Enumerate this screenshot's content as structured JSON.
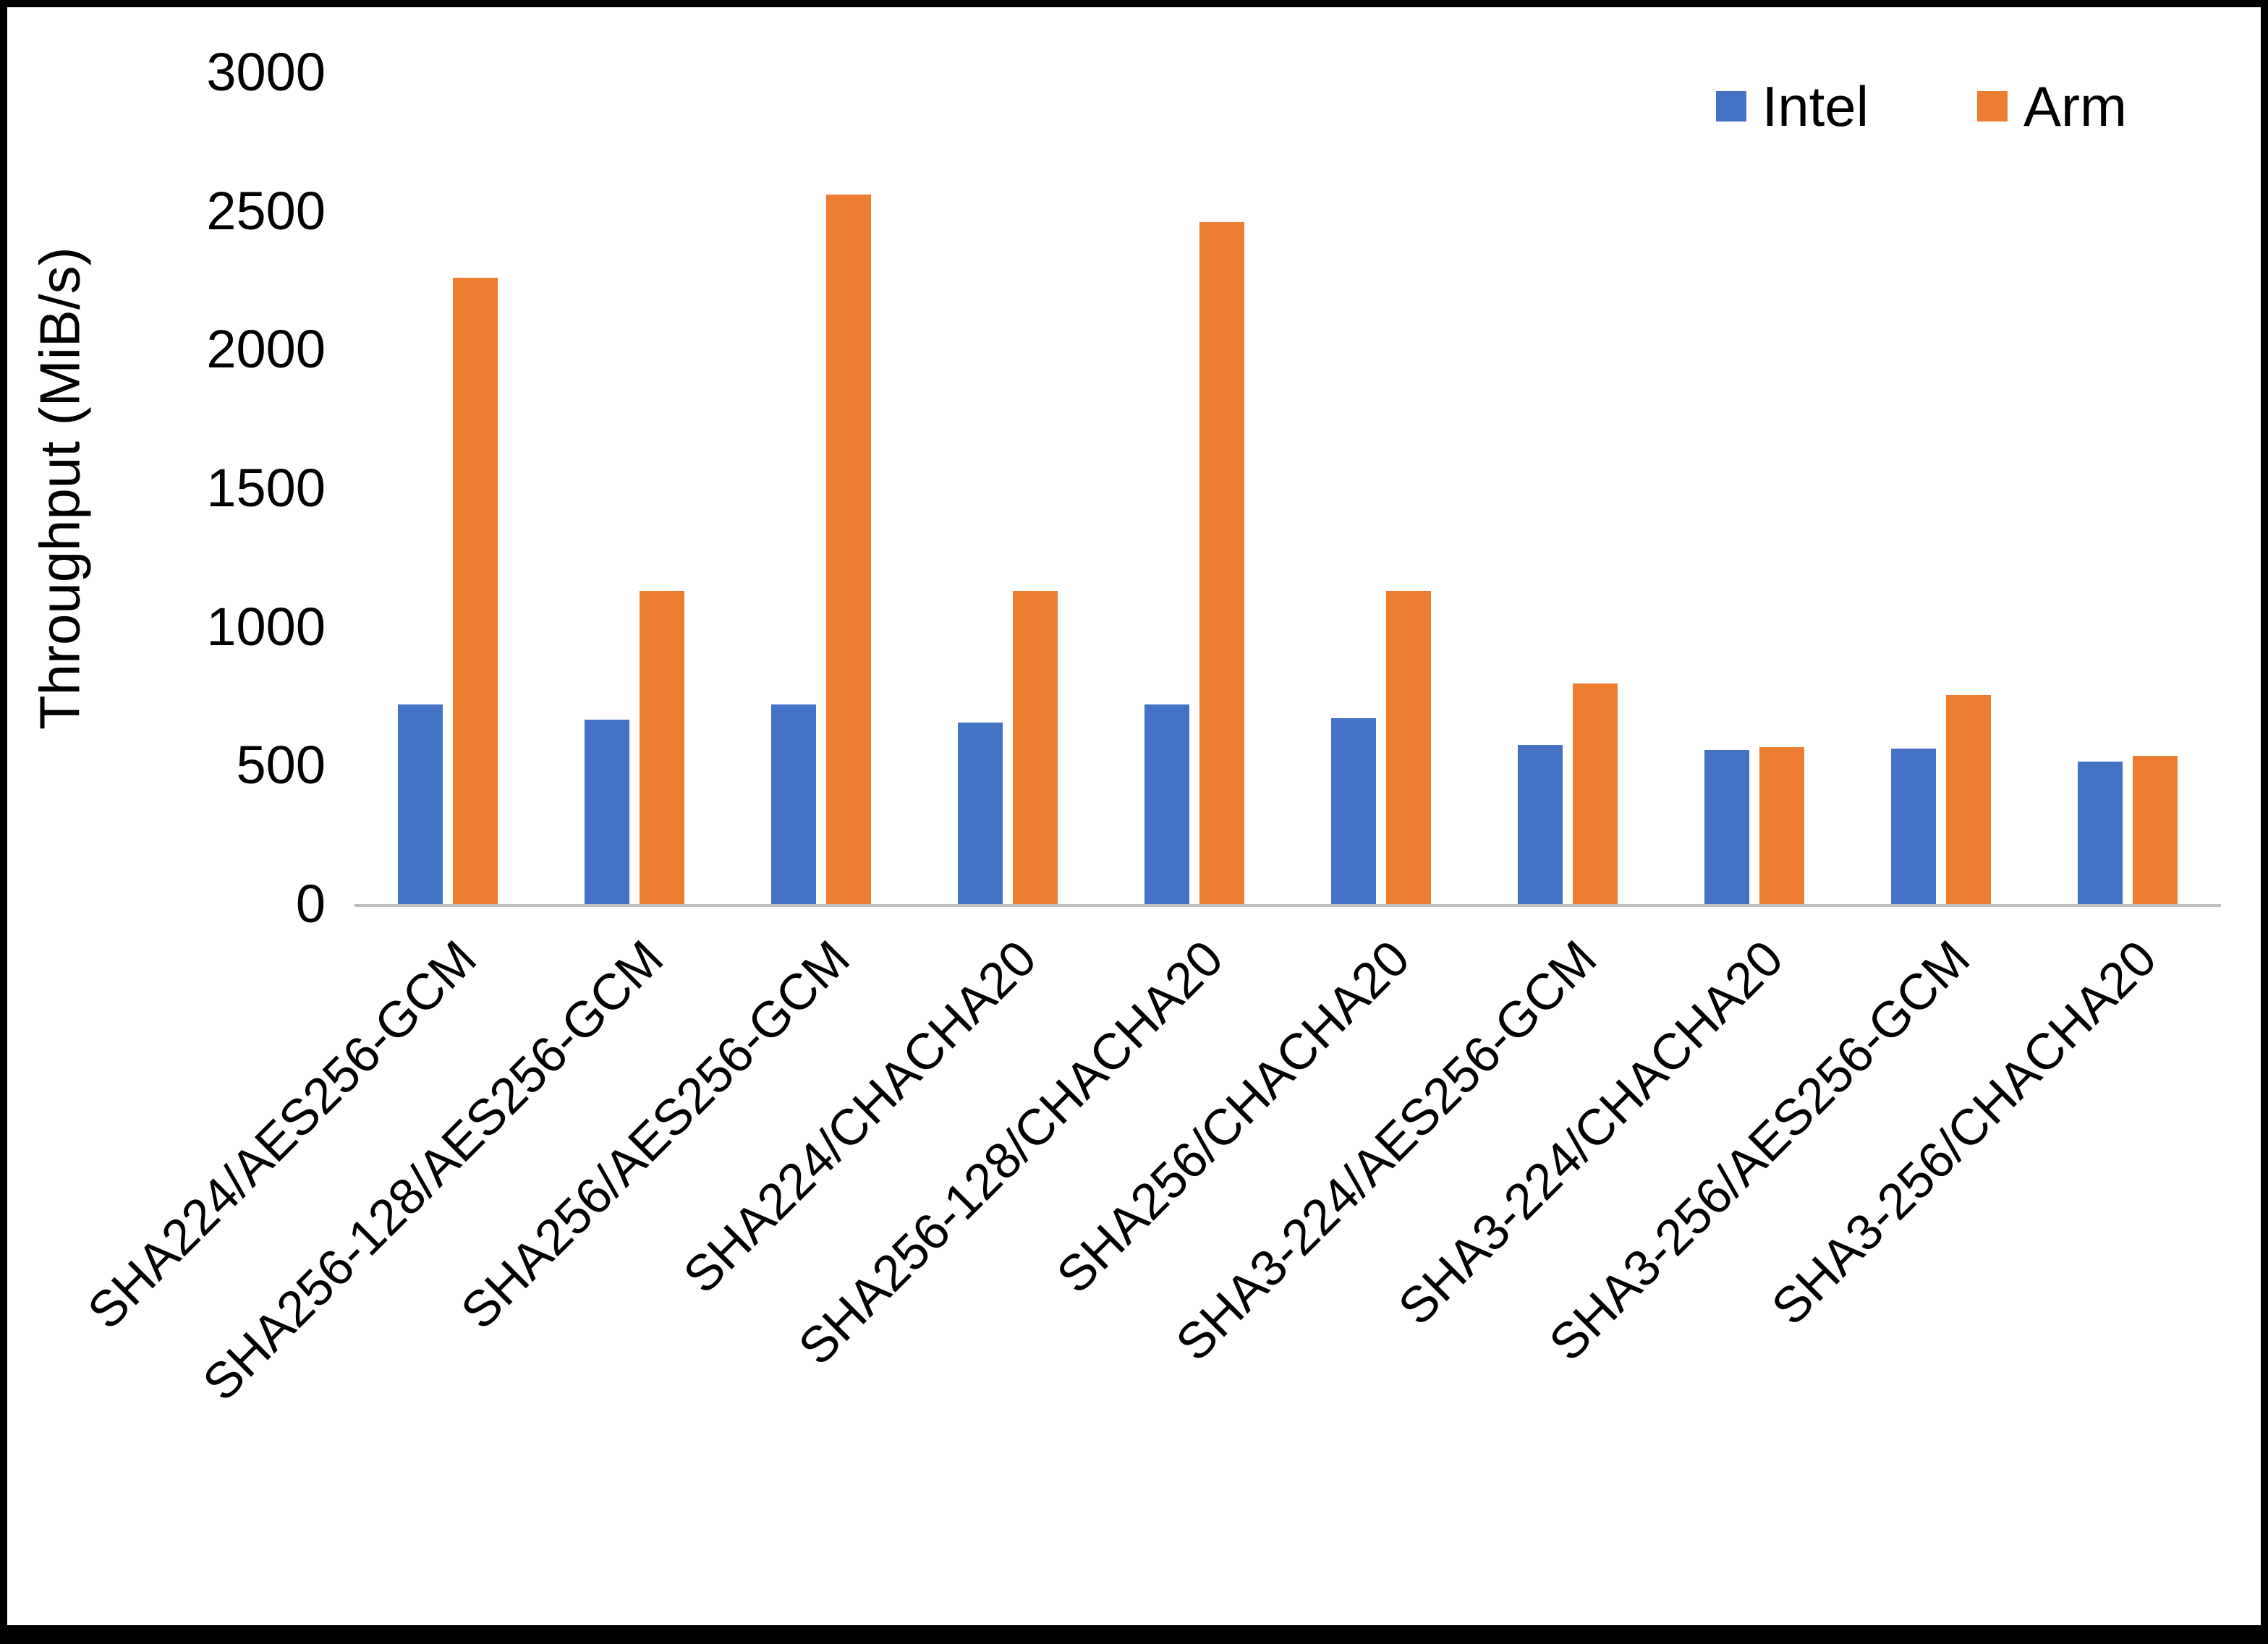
{
  "chart_data": {
    "type": "bar",
    "title": "",
    "xlabel": "",
    "ylabel": "Throughput (MiB/s)",
    "ylim": [
      0,
      3000
    ],
    "yticks": [
      0,
      500,
      1000,
      1500,
      2000,
      2500,
      3000
    ],
    "grid": false,
    "legend_position": "top-right",
    "categories": [
      "SHA224/AES256-GCM",
      "SHA256-128/AES256-GCM",
      "SHA256/AES256-GCM",
      "SHA224/CHACHA20",
      "SHA256-128/CHACHA20",
      "SHA256/CHACHA20",
      "SHA3-224/AES256-GCM",
      "SHA3-224/CHACHA20",
      "SHA3-256/AES256-GCM",
      "SHA3-256/CHACHA20"
    ],
    "series": [
      {
        "name": "Intel",
        "color": "#4472C4",
        "values": [
          720,
          665,
          720,
          655,
          720,
          670,
          575,
          555,
          560,
          515
        ]
      },
      {
        "name": "Arm",
        "color": "#ED7D31",
        "values": [
          2260,
          1130,
          2560,
          1130,
          2460,
          1130,
          795,
          565,
          755,
          535
        ]
      }
    ]
  }
}
